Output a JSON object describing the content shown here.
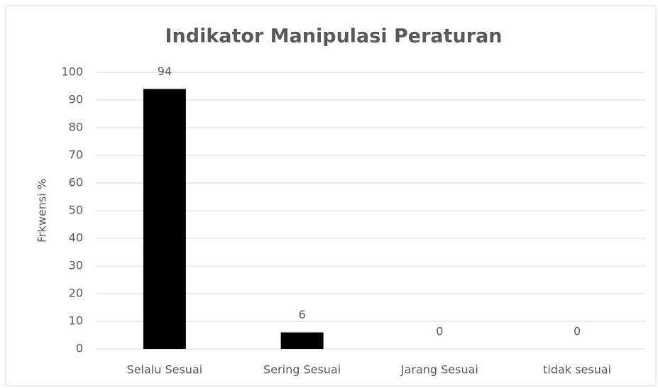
{
  "chart_data": {
    "type": "bar",
    "title": "Indikator Manipulasi Peraturan",
    "y_label": "Frkwensi %",
    "categories": [
      "Selalu Sesuai",
      "Sering Sesuai",
      "Jarang Sesuai",
      "tidak sesuai"
    ],
    "values": [
      94,
      6,
      0,
      0
    ],
    "color": "#000000",
    "ylim": [
      0,
      100
    ],
    "yticks": [
      0,
      10,
      20,
      30,
      40,
      50,
      60,
      70,
      80,
      90,
      100
    ],
    "grid": true
  }
}
